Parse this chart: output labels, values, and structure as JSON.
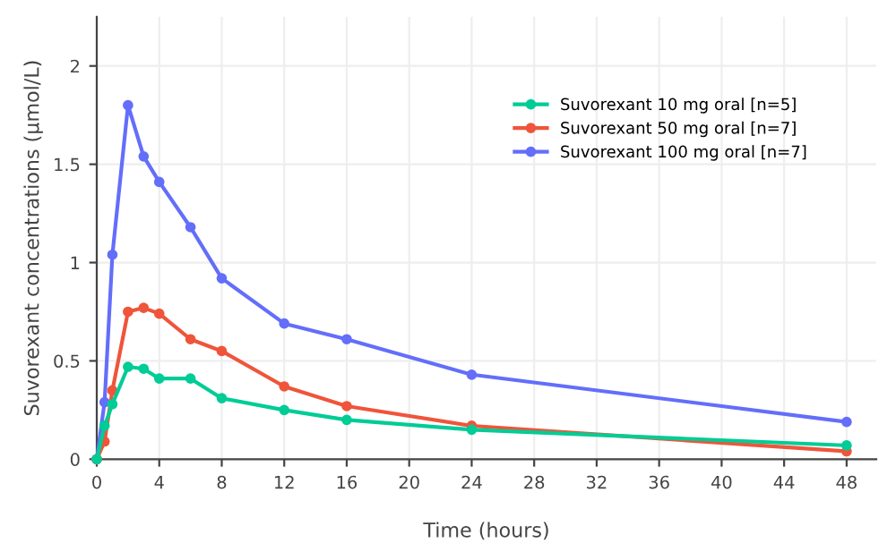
{
  "chart_data": {
    "type": "line",
    "xlabel": "Time (hours)",
    "ylabel": "Suvorexant concentrations (μmol/L)",
    "x": [
      0,
      0.5,
      1,
      2,
      3,
      4,
      6,
      8,
      12,
      16,
      24,
      48
    ],
    "series": [
      {
        "name": "Suvorexant 10 mg oral [n=5]",
        "color": "#00cc96",
        "values": [
          0,
          0.17,
          0.28,
          0.47,
          0.46,
          0.41,
          0.41,
          0.31,
          0.25,
          0.2,
          0.15,
          0.07
        ]
      },
      {
        "name": "Suvorexant 50 mg oral [n=7]",
        "color": "#ef553b",
        "values": [
          0,
          0.09,
          0.35,
          0.75,
          0.77,
          0.74,
          0.61,
          0.55,
          0.37,
          0.27,
          0.17,
          0.04
        ]
      },
      {
        "name": "Suvorexant 100 mg oral [n=7]",
        "color": "#636efa",
        "values": [
          0,
          0.29,
          1.04,
          1.8,
          1.54,
          1.41,
          1.18,
          0.92,
          0.69,
          0.61,
          0.43,
          0.19
        ]
      }
    ],
    "xlim": [
      0,
      49.9
    ],
    "ylim": [
      0,
      2.25
    ],
    "xticks": [
      0,
      4,
      8,
      12,
      16,
      20,
      24,
      28,
      32,
      36,
      40,
      44,
      48
    ],
    "yticks": [
      0,
      0.5,
      1,
      1.5,
      2
    ],
    "grid": true,
    "legend": "top right",
    "marker": "circle",
    "line_style": "solid"
  }
}
